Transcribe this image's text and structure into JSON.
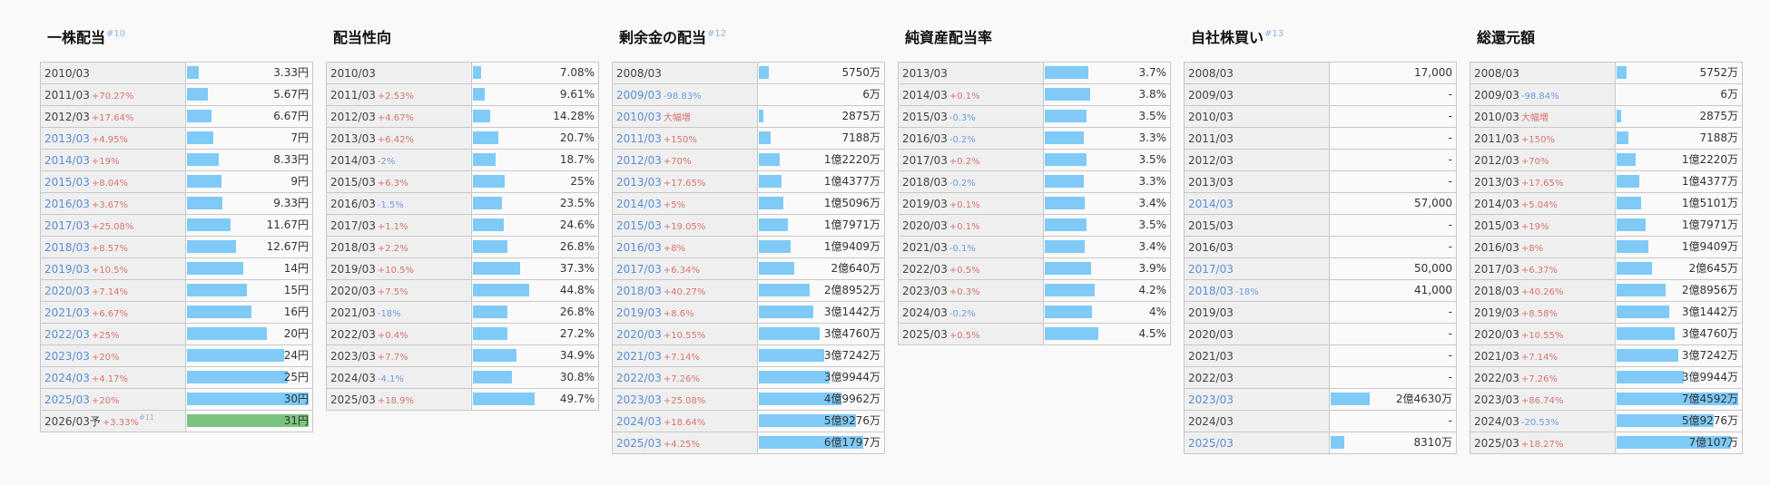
{
  "colors": {
    "bar": "#7fcaf7",
    "bar_forecast": "#7bc47f",
    "increase": "#d9746f",
    "decrease": "#6f9ee0",
    "blue_year": "#5b8fd4"
  },
  "panels": [
    {
      "title": "一株配当",
      "footnote": "#10",
      "rows": [
        {
          "year": "2010/03",
          "change": "",
          "dir": "",
          "value": "3.33円",
          "bar": 0.1
        },
        {
          "year": "2011/03",
          "change": "+70.27%",
          "dir": "up",
          "value": "5.67円",
          "bar": 0.17
        },
        {
          "year": "2012/03",
          "change": "+17.64%",
          "dir": "up",
          "value": "6.67円",
          "bar": 0.2
        },
        {
          "year": "2013/03",
          "change": "+4.95%",
          "dir": "up",
          "value": "7円",
          "bar": 0.22,
          "blue": true
        },
        {
          "year": "2014/03",
          "change": "+19%",
          "dir": "up",
          "value": "8.33円",
          "bar": 0.26,
          "blue": true
        },
        {
          "year": "2015/03",
          "change": "+8.04%",
          "dir": "up",
          "value": "9円",
          "bar": 0.28,
          "blue": true
        },
        {
          "year": "2016/03",
          "change": "+3.67%",
          "dir": "up",
          "value": "9.33円",
          "bar": 0.29,
          "blue": true
        },
        {
          "year": "2017/03",
          "change": "+25.08%",
          "dir": "up",
          "value": "11.67円",
          "bar": 0.36,
          "blue": true
        },
        {
          "year": "2018/03",
          "change": "+8.57%",
          "dir": "up",
          "value": "12.67円",
          "bar": 0.4,
          "blue": true
        },
        {
          "year": "2019/03",
          "change": "+10.5%",
          "dir": "up",
          "value": "14円",
          "bar": 0.46,
          "blue": true
        },
        {
          "year": "2020/03",
          "change": "+7.14%",
          "dir": "up",
          "value": "15円",
          "bar": 0.49,
          "blue": true
        },
        {
          "year": "2021/03",
          "change": "+6.67%",
          "dir": "up",
          "value": "16円",
          "bar": 0.53,
          "blue": true
        },
        {
          "year": "2022/03",
          "change": "+25%",
          "dir": "up",
          "value": "20円",
          "bar": 0.66,
          "blue": true
        },
        {
          "year": "2023/03",
          "change": "+20%",
          "dir": "up",
          "value": "24円",
          "bar": 0.8,
          "blue": true
        },
        {
          "year": "2024/03",
          "change": "+4.17%",
          "dir": "up",
          "value": "25円",
          "bar": 0.83,
          "blue": true
        },
        {
          "year": "2025/03",
          "change": "+20%",
          "dir": "up",
          "value": "30円",
          "bar": 1.0,
          "blue": true
        },
        {
          "year": "2026/03予",
          "change": "+3.33%",
          "dir": "up",
          "value": "31円",
          "bar": 1.0,
          "forecast": true,
          "footnote": "#11"
        }
      ]
    },
    {
      "title": "配当性向",
      "footnote": "",
      "rows": [
        {
          "year": "2010/03",
          "change": "",
          "dir": "",
          "value": "7.08%",
          "bar": 0.07
        },
        {
          "year": "2011/03",
          "change": "+2.53%",
          "dir": "up",
          "value": "9.61%",
          "bar": 0.1
        },
        {
          "year": "2012/03",
          "change": "+4.67%",
          "dir": "up",
          "value": "14.28%",
          "bar": 0.14
        },
        {
          "year": "2013/03",
          "change": "+6.42%",
          "dir": "up",
          "value": "20.7%",
          "bar": 0.21
        },
        {
          "year": "2014/03",
          "change": "-2%",
          "dir": "down",
          "value": "18.7%",
          "bar": 0.19
        },
        {
          "year": "2015/03",
          "change": "+6.3%",
          "dir": "up",
          "value": "25%",
          "bar": 0.26
        },
        {
          "year": "2016/03",
          "change": "-1.5%",
          "dir": "down",
          "value": "23.5%",
          "bar": 0.24
        },
        {
          "year": "2017/03",
          "change": "+1.1%",
          "dir": "up",
          "value": "24.6%",
          "bar": 0.25
        },
        {
          "year": "2018/03",
          "change": "+2.2%",
          "dir": "up",
          "value": "26.8%",
          "bar": 0.28
        },
        {
          "year": "2019/03",
          "change": "+10.5%",
          "dir": "up",
          "value": "37.3%",
          "bar": 0.39
        },
        {
          "year": "2020/03",
          "change": "+7.5%",
          "dir": "up",
          "value": "44.8%",
          "bar": 0.46
        },
        {
          "year": "2021/03",
          "change": "-18%",
          "dir": "down",
          "value": "26.8%",
          "bar": 0.28
        },
        {
          "year": "2022/03",
          "change": "+0.4%",
          "dir": "up",
          "value": "27.2%",
          "bar": 0.28
        },
        {
          "year": "2023/03",
          "change": "+7.7%",
          "dir": "up",
          "value": "34.9%",
          "bar": 0.36
        },
        {
          "year": "2024/03",
          "change": "-4.1%",
          "dir": "down",
          "value": "30.8%",
          "bar": 0.32
        },
        {
          "year": "2025/03",
          "change": "+18.9%",
          "dir": "up",
          "value": "49.7%",
          "bar": 0.51
        }
      ]
    },
    {
      "title": "剰余金の配当",
      "footnote": "#12",
      "rows": [
        {
          "year": "2008/03",
          "change": "",
          "dir": "",
          "value": "5750万",
          "bar": 0.08
        },
        {
          "year": "2009/03",
          "change": "-98.83%",
          "dir": "down",
          "value": "6万",
          "bar": 0.0,
          "blue": true
        },
        {
          "year": "2010/03",
          "change": "大幅増",
          "dir": "up",
          "value": "2875万",
          "bar": 0.04,
          "blue": true
        },
        {
          "year": "2011/03",
          "change": "+150%",
          "dir": "up",
          "value": "7188万",
          "bar": 0.1,
          "blue": true
        },
        {
          "year": "2012/03",
          "change": "+70%",
          "dir": "up",
          "value": "1億2220万",
          "bar": 0.17,
          "blue": true
        },
        {
          "year": "2013/03",
          "change": "+17.65%",
          "dir": "up",
          "value": "1億4377万",
          "bar": 0.19,
          "blue": true
        },
        {
          "year": "2014/03",
          "change": "+5%",
          "dir": "up",
          "value": "1億5096万",
          "bar": 0.2,
          "blue": true
        },
        {
          "year": "2015/03",
          "change": "+19.05%",
          "dir": "up",
          "value": "1億7971万",
          "bar": 0.24,
          "blue": true
        },
        {
          "year": "2016/03",
          "change": "+8%",
          "dir": "up",
          "value": "1億9409万",
          "bar": 0.26,
          "blue": true
        },
        {
          "year": "2017/03",
          "change": "+6.34%",
          "dir": "up",
          "value": "2億640万",
          "bar": 0.29,
          "blue": true
        },
        {
          "year": "2018/03",
          "change": "+40.27%",
          "dir": "up",
          "value": "2億8952万",
          "bar": 0.42,
          "blue": true
        },
        {
          "year": "2019/03",
          "change": "+8.6%",
          "dir": "up",
          "value": "3億1442万",
          "bar": 0.45,
          "blue": true
        },
        {
          "year": "2020/03",
          "change": "+10.55%",
          "dir": "up",
          "value": "3億4760万",
          "bar": 0.5,
          "blue": true
        },
        {
          "year": "2021/03",
          "change": "+7.14%",
          "dir": "up",
          "value": "3億7242万",
          "bar": 0.54,
          "blue": true
        },
        {
          "year": "2022/03",
          "change": "+7.26%",
          "dir": "up",
          "value": "3億9944万",
          "bar": 0.58,
          "blue": true
        },
        {
          "year": "2023/03",
          "change": "+25.08%",
          "dir": "up",
          "value": "4億9962万",
          "bar": 0.68,
          "blue": true
        },
        {
          "year": "2024/03",
          "change": "+18.64%",
          "dir": "up",
          "value": "5億9276万",
          "bar": 0.8,
          "blue": true
        },
        {
          "year": "2025/03",
          "change": "+4.25%",
          "dir": "up",
          "value": "6億1797万",
          "bar": 0.86,
          "blue": true
        }
      ]
    },
    {
      "title": "純資産配当率",
      "footnote": "",
      "rows": [
        {
          "year": "2013/03",
          "change": "",
          "dir": "",
          "value": "3.7%",
          "bar": 0.36
        },
        {
          "year": "2014/03",
          "change": "+0.1%",
          "dir": "up",
          "value": "3.8%",
          "bar": 0.37
        },
        {
          "year": "2015/03",
          "change": "-0.3%",
          "dir": "down",
          "value": "3.5%",
          "bar": 0.34
        },
        {
          "year": "2016/03",
          "change": "-0.2%",
          "dir": "down",
          "value": "3.3%",
          "bar": 0.32
        },
        {
          "year": "2017/03",
          "change": "+0.2%",
          "dir": "up",
          "value": "3.5%",
          "bar": 0.34
        },
        {
          "year": "2018/03",
          "change": "-0.2%",
          "dir": "down",
          "value": "3.3%",
          "bar": 0.32
        },
        {
          "year": "2019/03",
          "change": "+0.1%",
          "dir": "up",
          "value": "3.4%",
          "bar": 0.33
        },
        {
          "year": "2020/03",
          "change": "+0.1%",
          "dir": "up",
          "value": "3.5%",
          "bar": 0.34
        },
        {
          "year": "2021/03",
          "change": "-0.1%",
          "dir": "down",
          "value": "3.4%",
          "bar": 0.33
        },
        {
          "year": "2022/03",
          "change": "+0.5%",
          "dir": "up",
          "value": "3.9%",
          "bar": 0.38
        },
        {
          "year": "2023/03",
          "change": "+0.3%",
          "dir": "up",
          "value": "4.2%",
          "bar": 0.41
        },
        {
          "year": "2024/03",
          "change": "-0.2%",
          "dir": "down",
          "value": "4%",
          "bar": 0.39
        },
        {
          "year": "2025/03",
          "change": "+0.5%",
          "dir": "up",
          "value": "4.5%",
          "bar": 0.44
        }
      ]
    },
    {
      "title": "自社株買い",
      "footnote": "#13",
      "rows": [
        {
          "year": "2008/03",
          "change": "",
          "dir": "",
          "value": "17,000",
          "bar": 0
        },
        {
          "year": "2009/03",
          "change": "",
          "dir": "",
          "value": "-",
          "bar": 0
        },
        {
          "year": "2010/03",
          "change": "",
          "dir": "",
          "value": "-",
          "bar": 0
        },
        {
          "year": "2011/03",
          "change": "",
          "dir": "",
          "value": "-",
          "bar": 0
        },
        {
          "year": "2012/03",
          "change": "",
          "dir": "",
          "value": "-",
          "bar": 0
        },
        {
          "year": "2013/03",
          "change": "",
          "dir": "",
          "value": "-",
          "bar": 0
        },
        {
          "year": "2014/03",
          "change": "",
          "dir": "",
          "value": "57,000",
          "bar": 0,
          "blue": true
        },
        {
          "year": "2015/03",
          "change": "",
          "dir": "",
          "value": "-",
          "bar": 0
        },
        {
          "year": "2016/03",
          "change": "",
          "dir": "",
          "value": "-",
          "bar": 0
        },
        {
          "year": "2017/03",
          "change": "",
          "dir": "",
          "value": "50,000",
          "bar": 0,
          "blue": true
        },
        {
          "year": "2018/03",
          "change": "-18%",
          "dir": "down",
          "value": "41,000",
          "bar": 0,
          "blue": true
        },
        {
          "year": "2019/03",
          "change": "",
          "dir": "",
          "value": "-",
          "bar": 0
        },
        {
          "year": "2020/03",
          "change": "",
          "dir": "",
          "value": "-",
          "bar": 0
        },
        {
          "year": "2021/03",
          "change": "",
          "dir": "",
          "value": "-",
          "bar": 0
        },
        {
          "year": "2022/03",
          "change": "",
          "dir": "",
          "value": "-",
          "bar": 0
        },
        {
          "year": "2023/03",
          "change": "",
          "dir": "",
          "value": "2億4630万",
          "bar": 0.32,
          "blue": true
        },
        {
          "year": "2024/03",
          "change": "",
          "dir": "",
          "value": "-",
          "bar": 0
        },
        {
          "year": "2025/03",
          "change": "",
          "dir": "",
          "value": "8310万",
          "bar": 0.11,
          "blue": true
        }
      ]
    },
    {
      "title": "総還元額",
      "footnote": "",
      "rows": [
        {
          "year": "2008/03",
          "change": "",
          "dir": "",
          "value": "5752万",
          "bar": 0.08
        },
        {
          "year": "2009/03",
          "change": "-98.84%",
          "dir": "down",
          "value": "6万",
          "bar": 0.0
        },
        {
          "year": "2010/03",
          "change": "大幅増",
          "dir": "up",
          "value": "2875万",
          "bar": 0.04
        },
        {
          "year": "2011/03",
          "change": "+150%",
          "dir": "up",
          "value": "7188万",
          "bar": 0.1
        },
        {
          "year": "2012/03",
          "change": "+70%",
          "dir": "up",
          "value": "1億2220万",
          "bar": 0.16
        },
        {
          "year": "2013/03",
          "change": "+17.65%",
          "dir": "up",
          "value": "1億4377万",
          "bar": 0.19
        },
        {
          "year": "2014/03",
          "change": "+5.04%",
          "dir": "up",
          "value": "1億5101万",
          "bar": 0.2
        },
        {
          "year": "2015/03",
          "change": "+19%",
          "dir": "up",
          "value": "1億7971万",
          "bar": 0.24
        },
        {
          "year": "2016/03",
          "change": "+8%",
          "dir": "up",
          "value": "1億9409万",
          "bar": 0.26
        },
        {
          "year": "2017/03",
          "change": "+6.37%",
          "dir": "up",
          "value": "2億645万",
          "bar": 0.29
        },
        {
          "year": "2018/03",
          "change": "+40.26%",
          "dir": "up",
          "value": "2億8956万",
          "bar": 0.4
        },
        {
          "year": "2019/03",
          "change": "+8.58%",
          "dir": "up",
          "value": "3億1442万",
          "bar": 0.43
        },
        {
          "year": "2020/03",
          "change": "+10.55%",
          "dir": "up",
          "value": "3億4760万",
          "bar": 0.48
        },
        {
          "year": "2021/03",
          "change": "+7.14%",
          "dir": "up",
          "value": "3億7242万",
          "bar": 0.51
        },
        {
          "year": "2022/03",
          "change": "+7.26%",
          "dir": "up",
          "value": "3億9944万",
          "bar": 0.55
        },
        {
          "year": "2023/03",
          "change": "+86.74%",
          "dir": "up",
          "value": "7億4592万",
          "bar": 1.0
        },
        {
          "year": "2024/03",
          "change": "-20.53%",
          "dir": "down",
          "value": "5億9276万",
          "bar": 0.8
        },
        {
          "year": "2025/03",
          "change": "+18.27%",
          "dir": "up",
          "value": "7億107万",
          "bar": 0.94
        }
      ]
    }
  ]
}
